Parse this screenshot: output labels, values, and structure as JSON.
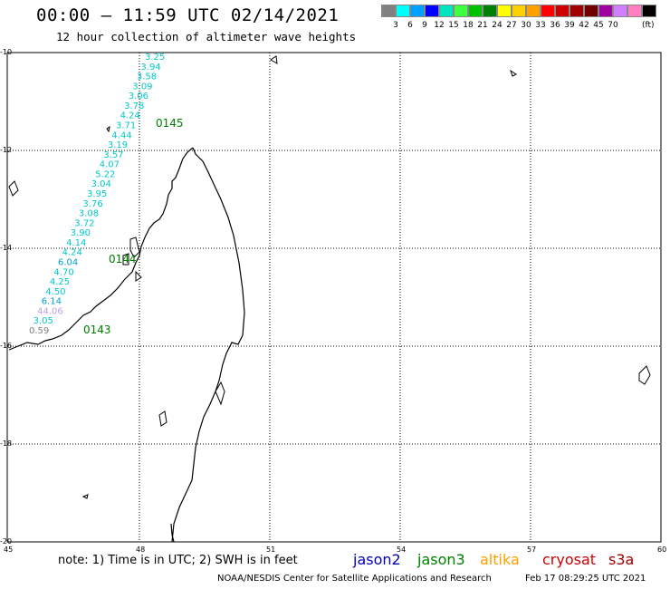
{
  "title": "00:00 – 11:59 UTC 02/14/2021",
  "subtitle": "12 hour collection of altimeter wave heights",
  "legend": {
    "unit": "(ft)",
    "colors": [
      "#808080",
      "#00ffff",
      "#00a0ff",
      "#0000ff",
      "#00e5c0",
      "#40ff40",
      "#00c000",
      "#008000",
      "#ffff00",
      "#ffd000",
      "#ffa000",
      "#ff0000",
      "#d00000",
      "#a00000",
      "#700000",
      "#a000a0",
      "#d080ff",
      "#ff80c0",
      "#000000"
    ],
    "labels": [
      "",
      "3",
      "6",
      "9",
      "12",
      "15",
      "18",
      "21",
      "24",
      "27",
      "30",
      "33",
      "36",
      "39",
      "42",
      "45",
      "70",
      ""
    ]
  },
  "axes": {
    "lat_labels": [
      "-10",
      "-12",
      "-14",
      "-16",
      "-18",
      "-20"
    ],
    "lon_labels": [
      "45",
      "48",
      "51",
      "54",
      "57",
      "60"
    ]
  },
  "tracks": [
    {
      "name": "0145",
      "color": "#008000"
    },
    {
      "name": "0144",
      "color": "#008000"
    },
    {
      "name": "0143",
      "color": "#008000"
    }
  ],
  "swh_values": [
    {
      "v": "3.25",
      "c": "#00c8c8"
    },
    {
      "v": "3.94",
      "c": "#00c8c8"
    },
    {
      "v": "3.58",
      "c": "#00c8c8"
    },
    {
      "v": "3.09",
      "c": "#00c8c8"
    },
    {
      "v": "3.06",
      "c": "#00c8c8"
    },
    {
      "v": "3.78",
      "c": "#00c8c8"
    },
    {
      "v": "4.24",
      "c": "#00c8c8"
    },
    {
      "v": "3.71",
      "c": "#00c8c8"
    },
    {
      "v": "4.44",
      "c": "#00c8c8"
    },
    {
      "v": "3.19",
      "c": "#00c8c8"
    },
    {
      "v": "3.57",
      "c": "#00c8c8"
    },
    {
      "v": "4.07",
      "c": "#00c8c8"
    },
    {
      "v": "5.22",
      "c": "#00c8c8"
    },
    {
      "v": "3.04",
      "c": "#00c8c8"
    },
    {
      "v": "3.95",
      "c": "#00c8c8"
    },
    {
      "v": "3.76",
      "c": "#00c8c8"
    },
    {
      "v": "3.08",
      "c": "#00c8c8"
    },
    {
      "v": "3.72",
      "c": "#00c8c8"
    },
    {
      "v": "3.90",
      "c": "#00c8c8"
    },
    {
      "v": "4.14",
      "c": "#00c8c8"
    },
    {
      "v": "4.24",
      "c": "#00c8c8"
    },
    {
      "v": "6.04",
      "c": "#00a0d0"
    },
    {
      "v": "4.70",
      "c": "#00c8c8"
    },
    {
      "v": "4.25",
      "c": "#00c8c8"
    },
    {
      "v": "4.50",
      "c": "#00c8c8"
    },
    {
      "v": "6.14",
      "c": "#00a0d0"
    },
    {
      "v": "44.06",
      "c": "#c0a0e0"
    },
    {
      "v": "3.05",
      "c": "#00c8c8"
    },
    {
      "v": "0.59",
      "c": "#808080"
    }
  ],
  "note": "note:  1) Time is in UTC;  2) SWH is in feet",
  "satellites": [
    {
      "name": "jason2",
      "color": "#0000c0"
    },
    {
      "name": "jason3",
      "color": "#008000"
    },
    {
      "name": "altika",
      "color": "#ffa000"
    },
    {
      "name": "cryosat",
      "color": "#d00000"
    },
    {
      "name": "s3a",
      "color": "#a00000"
    }
  ],
  "footer": "NOAA/NESDIS Center for Satellite Applications and Research",
  "footer_date": "Feb 17 08:29:25 UTC 2021"
}
